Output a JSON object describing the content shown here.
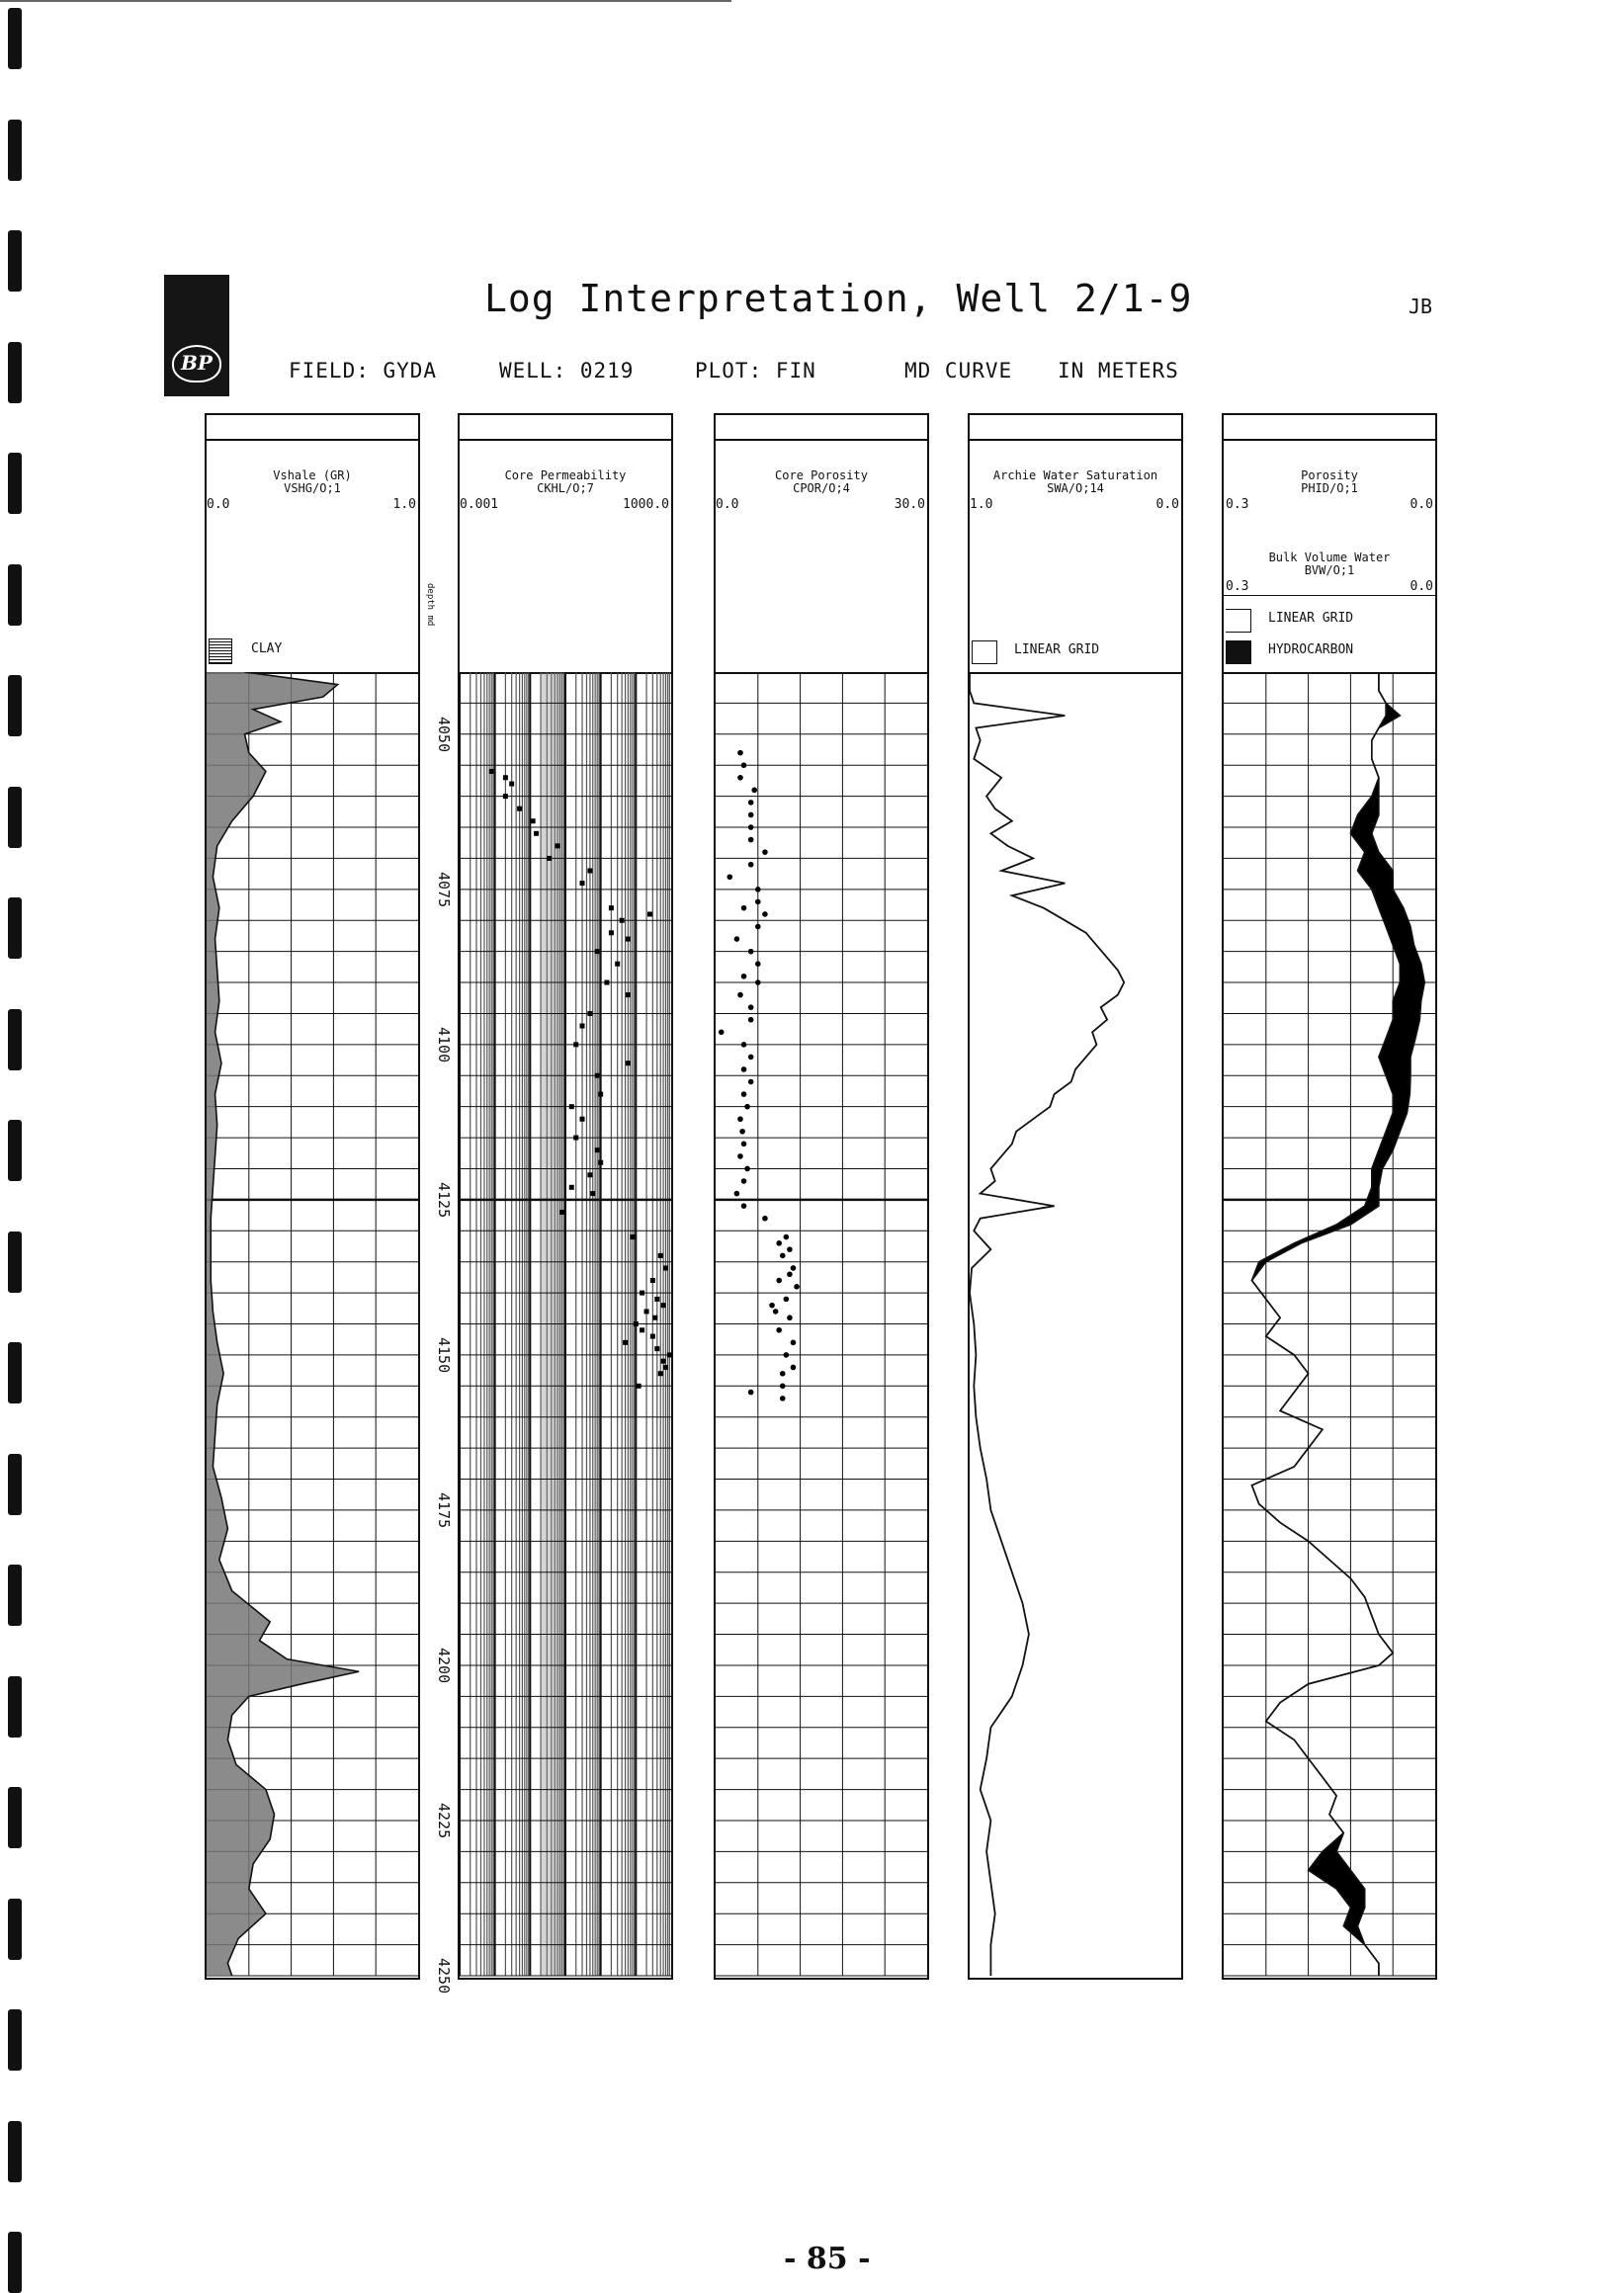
{
  "document": {
    "title": "Log Interpretation, Well 2/1-9",
    "initials": "JB",
    "logo_text": "BP",
    "field": "FIELD: GYDA",
    "well": "WELL: 0219",
    "plot": "PLOT: FIN",
    "curve": "MD CURVE",
    "units": "IN METERS",
    "page_number": "- 85 -"
  },
  "depth_axis": {
    "label": "depth md",
    "ticks": [
      "4050",
      "4075",
      "4100",
      "4125",
      "4150",
      "4175",
      "4200",
      "4225",
      "4250"
    ]
  },
  "tracks": [
    {
      "title": "Vshale (GR)",
      "mnemonic": "VSHG/O;1",
      "left": "0.0",
      "right": "1.0",
      "legend": [
        "CLAY"
      ]
    },
    {
      "title": "Core Permeability",
      "mnemonic": "CKHL/O;7",
      "left": "0.001",
      "right": "1000.0",
      "legend": []
    },
    {
      "title": "Core Porosity",
      "mnemonic": "CPOR/O;4",
      "left": "0.0",
      "right": "30.0",
      "legend": []
    },
    {
      "title": "Archie Water Saturation",
      "mnemonic": "SWA/O;14",
      "left": "1.0",
      "right": "0.0",
      "legend": [
        "LINEAR GRID"
      ]
    },
    {
      "title": "Porosity",
      "mnemonic": "PHID/O;1",
      "left": "0.3",
      "right": "0.0",
      "title2": "Bulk Volume Water",
      "mnemonic2": "BVW/O;1",
      "left2": "0.3",
      "right2": "0.0",
      "legend": [
        "LINEAR GRID",
        "HYDROCARBON"
      ]
    }
  ],
  "chart_data": {
    "type": "well-log",
    "depth_range": [
      4040,
      4250
    ],
    "depth_units": "m",
    "depth_ticks": [
      4050,
      4075,
      4100,
      4125,
      4150,
      4175,
      4200,
      4225,
      4250
    ],
    "vshale_profile": [
      [
        4040,
        0.18
      ],
      [
        4042,
        0.62
      ],
      [
        4044,
        0.55
      ],
      [
        4046,
        0.22
      ],
      [
        4048,
        0.35
      ],
      [
        4050,
        0.18
      ],
      [
        4053,
        0.2
      ],
      [
        4056,
        0.28
      ],
      [
        4060,
        0.22
      ],
      [
        4064,
        0.12
      ],
      [
        4068,
        0.05
      ],
      [
        4073,
        0.03
      ],
      [
        4078,
        0.06
      ],
      [
        4083,
        0.04
      ],
      [
        4088,
        0.05
      ],
      [
        4093,
        0.06
      ],
      [
        4098,
        0.04
      ],
      [
        4103,
        0.07
      ],
      [
        4108,
        0.04
      ],
      [
        4113,
        0.05
      ],
      [
        4118,
        0.04
      ],
      [
        4123,
        0.03
      ],
      [
        4128,
        0.02
      ],
      [
        4133,
        0.02
      ],
      [
        4138,
        0.02
      ],
      [
        4143,
        0.03
      ],
      [
        4148,
        0.05
      ],
      [
        4153,
        0.08
      ],
      [
        4158,
        0.05
      ],
      [
        4163,
        0.04
      ],
      [
        4168,
        0.03
      ],
      [
        4173,
        0.07
      ],
      [
        4178,
        0.1
      ],
      [
        4183,
        0.06
      ],
      [
        4188,
        0.12
      ],
      [
        4193,
        0.3
      ],
      [
        4196,
        0.25
      ],
      [
        4199,
        0.38
      ],
      [
        4201,
        0.72
      ],
      [
        4203,
        0.45
      ],
      [
        4205,
        0.2
      ],
      [
        4208,
        0.12
      ],
      [
        4212,
        0.1
      ],
      [
        4216,
        0.14
      ],
      [
        4220,
        0.28
      ],
      [
        4224,
        0.32
      ],
      [
        4228,
        0.3
      ],
      [
        4232,
        0.22
      ],
      [
        4236,
        0.2
      ],
      [
        4240,
        0.28
      ],
      [
        4244,
        0.15
      ],
      [
        4248,
        0.1
      ],
      [
        4250,
        0.12
      ]
    ],
    "core_permeability": [
      [
        4056,
        0.008
      ],
      [
        4057,
        0.02
      ],
      [
        4058,
        0.03
      ],
      [
        4060,
        0.02
      ],
      [
        4062,
        0.05
      ],
      [
        4064,
        0.12
      ],
      [
        4066,
        0.15
      ],
      [
        4068,
        0.6
      ],
      [
        4070,
        0.35
      ],
      [
        4072,
        5
      ],
      [
        4074,
        3
      ],
      [
        4078,
        20
      ],
      [
        4079,
        250
      ],
      [
        4080,
        40
      ],
      [
        4082,
        20
      ],
      [
        4083,
        60
      ],
      [
        4085,
        8
      ],
      [
        4087,
        30
      ],
      [
        4090,
        15
      ],
      [
        4092,
        60
      ],
      [
        4095,
        5
      ],
      [
        4097,
        3
      ],
      [
        4100,
        2
      ],
      [
        4103,
        60
      ],
      [
        4105,
        8
      ],
      [
        4108,
        10
      ],
      [
        4110,
        1.5
      ],
      [
        4112,
        3
      ],
      [
        4115,
        2
      ],
      [
        4117,
        8
      ],
      [
        4119,
        10
      ],
      [
        4121,
        5
      ],
      [
        4123,
        1.5
      ],
      [
        4124,
        6
      ],
      [
        4127,
        0.8
      ],
      [
        4131,
        80
      ],
      [
        4134,
        500
      ],
      [
        4136,
        700
      ],
      [
        4138,
        300
      ],
      [
        4140,
        150
      ],
      [
        4141,
        400
      ],
      [
        4142,
        600
      ],
      [
        4143,
        200
      ],
      [
        4144,
        350
      ],
      [
        4145,
        100
      ],
      [
        4146,
        150
      ],
      [
        4147,
        300
      ],
      [
        4148,
        50
      ],
      [
        4149,
        400
      ],
      [
        4150,
        900
      ],
      [
        4151,
        600
      ],
      [
        4152,
        700
      ],
      [
        4153,
        500
      ],
      [
        4155,
        120
      ]
    ],
    "core_porosity": [
      [
        4053,
        3.5
      ],
      [
        4055,
        4
      ],
      [
        4057,
        3.5
      ],
      [
        4059,
        5.5
      ],
      [
        4061,
        5
      ],
      [
        4063,
        5
      ],
      [
        4065,
        5
      ],
      [
        4067,
        5
      ],
      [
        4069,
        7
      ],
      [
        4071,
        5
      ],
      [
        4073,
        2
      ],
      [
        4075,
        6
      ],
      [
        4077,
        6
      ],
      [
        4078,
        4
      ],
      [
        4079,
        7
      ],
      [
        4081,
        6
      ],
      [
        4083,
        3
      ],
      [
        4085,
        5
      ],
      [
        4087,
        6
      ],
      [
        4089,
        4
      ],
      [
        4090,
        6
      ],
      [
        4092,
        3.5
      ],
      [
        4094,
        5
      ],
      [
        4096,
        5
      ],
      [
        4098,
        0.8
      ],
      [
        4100,
        4
      ],
      [
        4102,
        5
      ],
      [
        4104,
        4
      ],
      [
        4106,
        5
      ],
      [
        4108,
        4
      ],
      [
        4110,
        4.5
      ],
      [
        4112,
        3.5
      ],
      [
        4114,
        3.8
      ],
      [
        4116,
        4
      ],
      [
        4118,
        3.5
      ],
      [
        4120,
        4.5
      ],
      [
        4122,
        4
      ],
      [
        4124,
        3
      ],
      [
        4126,
        4
      ],
      [
        4128,
        7
      ],
      [
        4131,
        10
      ],
      [
        4132,
        9
      ],
      [
        4133,
        10.5
      ],
      [
        4134,
        9.5
      ],
      [
        4136,
        11
      ],
      [
        4137,
        10.5
      ],
      [
        4138,
        9
      ],
      [
        4139,
        11.5
      ],
      [
        4141,
        10
      ],
      [
        4142,
        8
      ],
      [
        4143,
        8.5
      ],
      [
        4144,
        10.5
      ],
      [
        4146,
        9
      ],
      [
        4148,
        11
      ],
      [
        4150,
        10
      ],
      [
        4152,
        11
      ],
      [
        4153,
        9.5
      ],
      [
        4155,
        9.5
      ],
      [
        4156,
        5
      ],
      [
        4157,
        9.5
      ]
    ],
    "archie_water_saturation": [
      [
        4040,
        1.0
      ],
      [
        4043,
        1.0
      ],
      [
        4045,
        0.98
      ],
      [
        4047,
        0.55
      ],
      [
        4049,
        0.97
      ],
      [
        4051,
        0.95
      ],
      [
        4054,
        0.98
      ],
      [
        4057,
        0.85
      ],
      [
        4060,
        0.92
      ],
      [
        4062,
        0.88
      ],
      [
        4064,
        0.8
      ],
      [
        4066,
        0.9
      ],
      [
        4068,
        0.82
      ],
      [
        4070,
        0.7
      ],
      [
        4072,
        0.85
      ],
      [
        4074,
        0.55
      ],
      [
        4076,
        0.8
      ],
      [
        4078,
        0.65
      ],
      [
        4080,
        0.55
      ],
      [
        4082,
        0.45
      ],
      [
        4084,
        0.4
      ],
      [
        4086,
        0.35
      ],
      [
        4088,
        0.3
      ],
      [
        4090,
        0.27
      ],
      [
        4092,
        0.3
      ],
      [
        4094,
        0.38
      ],
      [
        4096,
        0.35
      ],
      [
        4098,
        0.42
      ],
      [
        4100,
        0.4
      ],
      [
        4102,
        0.45
      ],
      [
        4104,
        0.5
      ],
      [
        4106,
        0.52
      ],
      [
        4108,
        0.6
      ],
      [
        4110,
        0.62
      ],
      [
        4112,
        0.7
      ],
      [
        4114,
        0.78
      ],
      [
        4116,
        0.8
      ],
      [
        4118,
        0.85
      ],
      [
        4120,
        0.9
      ],
      [
        4122,
        0.88
      ],
      [
        4124,
        0.95
      ],
      [
        4126,
        0.6
      ],
      [
        4128,
        0.95
      ],
      [
        4130,
        0.98
      ],
      [
        4133,
        0.9
      ],
      [
        4136,
        0.99
      ],
      [
        4140,
        1.0
      ],
      [
        4145,
        0.98
      ],
      [
        4150,
        0.97
      ],
      [
        4155,
        0.98
      ],
      [
        4160,
        0.97
      ],
      [
        4165,
        0.95
      ],
      [
        4170,
        0.92
      ],
      [
        4175,
        0.9
      ],
      [
        4180,
        0.85
      ],
      [
        4185,
        0.8
      ],
      [
        4190,
        0.75
      ],
      [
        4195,
        0.72
      ],
      [
        4200,
        0.75
      ],
      [
        4205,
        0.8
      ],
      [
        4210,
        0.9
      ],
      [
        4215,
        0.92
      ],
      [
        4220,
        0.95
      ],
      [
        4225,
        0.9
      ],
      [
        4230,
        0.92
      ],
      [
        4235,
        0.9
      ],
      [
        4240,
        0.88
      ],
      [
        4245,
        0.9
      ],
      [
        4250,
        0.9
      ]
    ],
    "porosity_phid": [
      [
        4040,
        0.08
      ],
      [
        4043,
        0.08
      ],
      [
        4045,
        0.07
      ],
      [
        4047,
        0.07
      ],
      [
        4049,
        0.08
      ],
      [
        4051,
        0.09
      ],
      [
        4054,
        0.09
      ],
      [
        4057,
        0.08
      ],
      [
        4060,
        0.09
      ],
      [
        4063,
        0.11
      ],
      [
        4066,
        0.12
      ],
      [
        4069,
        0.1
      ],
      [
        4072,
        0.11
      ],
      [
        4075,
        0.09
      ],
      [
        4078,
        0.08
      ],
      [
        4081,
        0.07
      ],
      [
        4084,
        0.06
      ],
      [
        4087,
        0.05
      ],
      [
        4090,
        0.05
      ],
      [
        4093,
        0.06
      ],
      [
        4096,
        0.06
      ],
      [
        4099,
        0.07
      ],
      [
        4102,
        0.08
      ],
      [
        4105,
        0.07
      ],
      [
        4108,
        0.06
      ],
      [
        4111,
        0.06
      ],
      [
        4114,
        0.07
      ],
      [
        4117,
        0.08
      ],
      [
        4120,
        0.09
      ],
      [
        4123,
        0.09
      ],
      [
        4126,
        0.1
      ],
      [
        4129,
        0.14
      ],
      [
        4132,
        0.2
      ],
      [
        4135,
        0.25
      ],
      [
        4138,
        0.26
      ],
      [
        4141,
        0.24
      ],
      [
        4144,
        0.22
      ],
      [
        4147,
        0.24
      ],
      [
        4150,
        0.2
      ],
      [
        4153,
        0.18
      ],
      [
        4156,
        0.2
      ],
      [
        4159,
        0.22
      ],
      [
        4162,
        0.16
      ],
      [
        4165,
        0.18
      ],
      [
        4168,
        0.2
      ],
      [
        4171,
        0.26
      ],
      [
        4174,
        0.25
      ],
      [
        4177,
        0.22
      ],
      [
        4180,
        0.18
      ],
      [
        4183,
        0.15
      ],
      [
        4186,
        0.12
      ],
      [
        4189,
        0.1
      ],
      [
        4192,
        0.09
      ],
      [
        4195,
        0.08
      ],
      [
        4198,
        0.06
      ],
      [
        4200,
        0.08
      ],
      [
        4203,
        0.18
      ],
      [
        4206,
        0.22
      ],
      [
        4209,
        0.24
      ],
      [
        4212,
        0.2
      ],
      [
        4215,
        0.18
      ],
      [
        4218,
        0.16
      ],
      [
        4221,
        0.14
      ],
      [
        4224,
        0.15
      ],
      [
        4227,
        0.13
      ],
      [
        4230,
        0.16
      ],
      [
        4233,
        0.18
      ],
      [
        4236,
        0.14
      ],
      [
        4239,
        0.12
      ],
      [
        4242,
        0.13
      ],
      [
        4245,
        0.1
      ],
      [
        4248,
        0.08
      ],
      [
        4250,
        0.08
      ]
    ],
    "bvw": [
      [
        4040,
        0.08
      ],
      [
        4043,
        0.08
      ],
      [
        4045,
        0.07
      ],
      [
        4047,
        0.05
      ],
      [
        4049,
        0.08
      ],
      [
        4051,
        0.09
      ],
      [
        4054,
        0.09
      ],
      [
        4057,
        0.08
      ],
      [
        4060,
        0.08
      ],
      [
        4063,
        0.08
      ],
      [
        4066,
        0.09
      ],
      [
        4069,
        0.08
      ],
      [
        4072,
        0.06
      ],
      [
        4075,
        0.06
      ],
      [
        4078,
        0.045
      ],
      [
        4081,
        0.035
      ],
      [
        4084,
        0.03
      ],
      [
        4087,
        0.02
      ],
      [
        4090,
        0.015
      ],
      [
        4093,
        0.02
      ],
      [
        4096,
        0.022
      ],
      [
        4099,
        0.028
      ],
      [
        4102,
        0.035
      ],
      [
        4105,
        0.035
      ],
      [
        4108,
        0.036
      ],
      [
        4111,
        0.04
      ],
      [
        4114,
        0.05
      ],
      [
        4117,
        0.06
      ],
      [
        4120,
        0.075
      ],
      [
        4123,
        0.08
      ],
      [
        4126,
        0.08
      ],
      [
        4129,
        0.12
      ],
      [
        4132,
        0.19
      ],
      [
        4135,
        0.24
      ],
      [
        4138,
        0.26
      ],
      [
        4141,
        0.24
      ],
      [
        4144,
        0.22
      ],
      [
        4147,
        0.24
      ],
      [
        4150,
        0.2
      ],
      [
        4153,
        0.18
      ],
      [
        4156,
        0.2
      ],
      [
        4159,
        0.22
      ],
      [
        4162,
        0.16
      ],
      [
        4165,
        0.18
      ],
      [
        4168,
        0.2
      ],
      [
        4171,
        0.26
      ],
      [
        4174,
        0.25
      ],
      [
        4177,
        0.22
      ],
      [
        4180,
        0.18
      ],
      [
        4183,
        0.15
      ],
      [
        4186,
        0.12
      ],
      [
        4189,
        0.1
      ],
      [
        4192,
        0.09
      ],
      [
        4195,
        0.08
      ],
      [
        4198,
        0.06
      ],
      [
        4200,
        0.08
      ],
      [
        4203,
        0.18
      ],
      [
        4206,
        0.22
      ],
      [
        4209,
        0.24
      ],
      [
        4212,
        0.2
      ],
      [
        4215,
        0.18
      ],
      [
        4218,
        0.16
      ],
      [
        4221,
        0.14
      ],
      [
        4224,
        0.15
      ],
      [
        4227,
        0.13
      ],
      [
        4230,
        0.14
      ],
      [
        4233,
        0.12
      ],
      [
        4236,
        0.1
      ],
      [
        4239,
        0.1
      ],
      [
        4242,
        0.11
      ],
      [
        4245,
        0.1
      ],
      [
        4248,
        0.08
      ],
      [
        4250,
        0.08
      ]
    ]
  }
}
